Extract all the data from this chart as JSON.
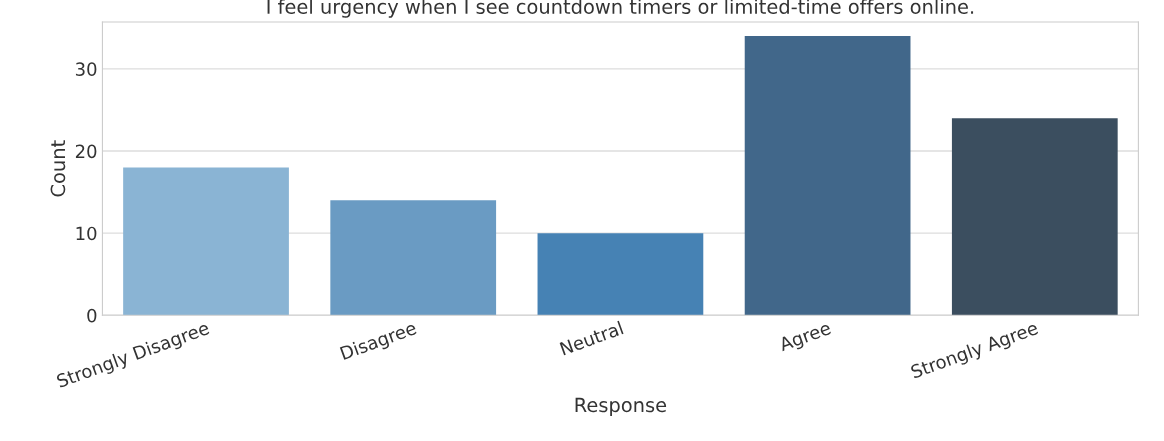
{
  "chart_data": {
    "type": "bar",
    "title": "I feel urgency when I see countdown timers or limited-time offers online.",
    "xlabel": "Response",
    "ylabel": "Count",
    "categories": [
      "Strongly Disagree",
      "Disagree",
      "Neutral",
      "Agree",
      "Strongly Agree"
    ],
    "values": [
      18,
      14,
      10,
      34,
      24
    ],
    "colors": [
      "#8ab4d4",
      "#6a9bc3",
      "#4682b4",
      "#41678a",
      "#3b4e5f"
    ],
    "ylim": [
      0,
      35.7
    ],
    "yticks": [
      0,
      10,
      20,
      30
    ],
    "grid": "y"
  }
}
